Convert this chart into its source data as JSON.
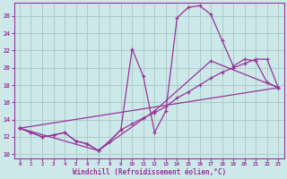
{
  "background_color": "#cce8e8",
  "grid_color": "#aacccc",
  "line_color": "#993399",
  "xlabel": "Windchill (Refroidissement éolien,°C)",
  "xlim": [
    -0.5,
    23.5
  ],
  "ylim": [
    9.5,
    27.5
  ],
  "xticks": [
    0,
    1,
    2,
    3,
    4,
    5,
    6,
    7,
    8,
    9,
    10,
    11,
    12,
    13,
    14,
    15,
    16,
    17,
    18,
    19,
    20,
    21,
    22,
    23
  ],
  "yticks": [
    10,
    12,
    14,
    16,
    18,
    20,
    22,
    24,
    26
  ],
  "curve1_x": [
    0,
    1,
    2,
    3,
    4,
    5,
    6,
    7,
    8,
    9,
    10,
    11,
    12,
    13,
    14,
    15,
    16,
    17,
    18,
    19,
    20,
    21,
    22,
    23
  ],
  "curve1_y": [
    13.0,
    12.5,
    12.0,
    12.2,
    12.5,
    11.5,
    11.2,
    10.4,
    11.5,
    12.8,
    22.2,
    19.0,
    12.5,
    15.0,
    25.8,
    27.0,
    27.2,
    26.2,
    23.2,
    20.2,
    21.0,
    20.8,
    18.3,
    17.7
  ],
  "curve2_x": [
    0,
    1,
    2,
    3,
    4,
    5,
    6,
    7,
    8,
    9,
    10,
    11,
    12,
    13,
    14,
    15,
    16,
    17,
    18,
    19,
    20,
    21,
    22,
    23
  ],
  "curve2_y": [
    13.0,
    12.5,
    12.0,
    12.2,
    12.5,
    11.5,
    11.2,
    10.4,
    11.5,
    12.8,
    13.5,
    14.2,
    14.8,
    15.5,
    16.5,
    17.2,
    18.0,
    18.8,
    19.5,
    20.0,
    20.5,
    21.0,
    21.0,
    17.7
  ],
  "curve3_x": [
    0,
    23
  ],
  "curve3_y": [
    13.0,
    17.7
  ],
  "curve4_x": [
    0,
    7,
    12,
    17,
    23
  ],
  "curve4_y": [
    13.0,
    10.4,
    15.0,
    20.8,
    17.7
  ]
}
